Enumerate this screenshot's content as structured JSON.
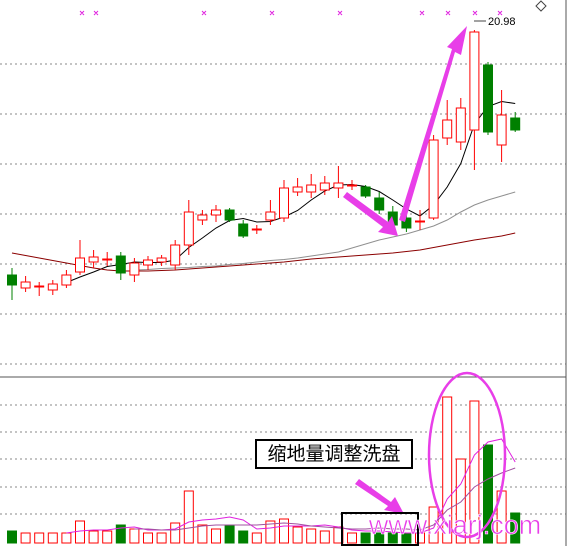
{
  "chart_data": {
    "type": "candlestick",
    "open": [
      16.08,
      15.82,
      15.84,
      15.78,
      15.88,
      16.14,
      16.34,
      16.38,
      16.46,
      16.08,
      16.28,
      16.34,
      16.28,
      16.68,
      17.18,
      17.28,
      17.38,
      17.1,
      16.98,
      17.18,
      17.22,
      17.74,
      17.74,
      17.78,
      17.82,
      17.86,
      17.84,
      17.62,
      17.34,
      17.22,
      17.14,
      17.22,
      18.82,
      18.74,
      18.98,
      20.28,
      18.68,
      19.22
    ],
    "high": [
      16.22,
      16.06,
      15.94,
      15.98,
      16.18,
      16.78,
      16.58,
      16.54,
      16.54,
      16.42,
      16.46,
      16.48,
      16.78,
      17.58,
      17.38,
      17.48,
      17.42,
      17.18,
      17.08,
      17.58,
      17.98,
      18.02,
      18.1,
      18.06,
      18.26,
      17.98,
      17.88,
      17.74,
      17.46,
      17.3,
      17.38,
      18.88,
      19.58,
      19.62,
      20.98,
      20.34,
      19.78,
      19.34
    ],
    "low": [
      15.58,
      15.74,
      15.66,
      15.68,
      15.82,
      16.08,
      16.22,
      16.26,
      15.98,
      15.94,
      16.18,
      16.26,
      16.18,
      16.48,
      17.08,
      17.14,
      17.14,
      16.82,
      16.9,
      17.08,
      17.14,
      17.66,
      17.62,
      17.68,
      17.62,
      17.78,
      17.62,
      17.3,
      17.02,
      16.94,
      16.98,
      17.18,
      18.68,
      18.58,
      18.18,
      18.88,
      18.34,
      18.94
    ],
    "close": [
      15.88,
      15.94,
      15.86,
      15.9,
      16.08,
      16.42,
      16.44,
      16.4,
      16.12,
      16.32,
      16.38,
      16.42,
      16.68,
      17.34,
      17.28,
      17.38,
      17.18,
      16.86,
      17.0,
      17.34,
      17.82,
      17.84,
      17.88,
      17.92,
      17.92,
      17.88,
      17.66,
      17.38,
      17.08,
      17.02,
      17.16,
      18.78,
      19.18,
      19.42,
      20.94,
      18.94,
      19.28,
      18.98
    ],
    "volume": [
      12,
      10,
      10,
      10,
      10,
      22,
      12,
      12,
      18,
      14,
      10,
      10,
      20,
      52,
      18,
      14,
      18,
      12,
      10,
      22,
      24,
      16,
      14,
      12,
      16,
      10,
      10,
      10,
      10,
      10,
      10,
      36,
      146,
      84,
      142,
      98,
      52,
      30
    ],
    "up_color": "#ff0000",
    "down_color": "#008000",
    "ylim": [
      14.08,
      21.58
    ],
    "vlim": [
      0,
      165
    ],
    "lines": [
      {
        "color": "#000000",
        "values": [
          null,
          null,
          null,
          null,
          15.93,
          16.04,
          16.14,
          16.25,
          16.29,
          16.34,
          16.33,
          16.33,
          16.38,
          16.63,
          16.82,
          17.02,
          17.17,
          17.21,
          17.14,
          17.15,
          17.24,
          17.37,
          17.58,
          17.76,
          17.88,
          17.89,
          17.85,
          17.75,
          17.58,
          17.4,
          17.26,
          17.48,
          17.84,
          18.31,
          19.1,
          19.45,
          19.55,
          19.51
        ]
      },
      {
        "color": "#909090",
        "values": [
          null,
          null,
          null,
          null,
          null,
          null,
          null,
          null,
          null,
          16.18,
          16.19,
          16.21,
          16.22,
          16.23,
          16.25,
          16.26,
          16.29,
          16.31,
          16.34,
          16.37,
          16.39,
          16.42,
          16.46,
          16.5,
          16.54,
          16.62,
          16.7,
          16.78,
          16.84,
          16.9,
          16.98,
          17.06,
          17.18,
          17.34,
          17.48,
          17.58,
          17.66,
          17.74
        ]
      },
      {
        "color": "#8b0000",
        "values": [
          16.52,
          16.47,
          16.42,
          16.37,
          16.32,
          16.27,
          16.22,
          16.18,
          16.16,
          16.16,
          16.16,
          16.17,
          16.18,
          16.2,
          16.22,
          16.24,
          16.26,
          16.28,
          16.3,
          16.32,
          16.34,
          16.37,
          16.4,
          16.42,
          16.44,
          16.46,
          16.48,
          16.5,
          16.52,
          16.55,
          16.58,
          16.63,
          16.68,
          16.73,
          16.78,
          16.82,
          16.86,
          16.92
        ]
      }
    ],
    "volume_lines": [
      {
        "color": "#e020e0",
        "values": [
          null,
          null,
          null,
          null,
          10,
          12,
          13,
          13,
          15,
          16,
          13,
          13,
          14,
          21,
          23,
          24,
          26,
          23,
          14,
          15,
          17,
          17,
          17,
          18,
          16,
          13,
          12,
          12,
          11,
          10,
          10,
          15,
          44,
          59,
          88,
          101,
          104,
          81
        ]
      },
      {
        "color": "#a050a0",
        "values": [
          null,
          null,
          null,
          null,
          null,
          null,
          null,
          null,
          null,
          14,
          14,
          13,
          13,
          15,
          17,
          18,
          18,
          18,
          18,
          19,
          20,
          19,
          17,
          16,
          15,
          14,
          14,
          15,
          14,
          14,
          13,
          18,
          33,
          41,
          56,
          64,
          70,
          75
        ]
      }
    ],
    "note": "缩地量调整洗盘",
    "watermark": "www.xiarj.com"
  }
}
